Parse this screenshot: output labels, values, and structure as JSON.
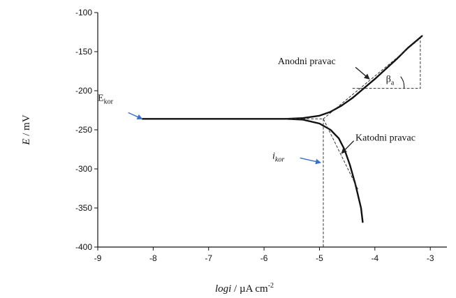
{
  "chart_data": {
    "type": "line",
    "title": "",
    "xlabel": {
      "main": "logi",
      "unit": " / µA cm",
      "sup": "-2"
    },
    "ylabel": {
      "main": "E",
      "unit": " / mV"
    },
    "xlim": [
      -9,
      -2.7
    ],
    "ylim": [
      -400,
      -100
    ],
    "xticks": [
      -9,
      -8,
      -7,
      -6,
      -5,
      -4,
      -3
    ],
    "yticks": [
      -100,
      -150,
      -200,
      -250,
      -300,
      -350,
      -400
    ],
    "grid": false,
    "series": [
      {
        "role": "measured-curve",
        "points": [
          [
            -8.2,
            -236
          ],
          [
            -7.5,
            -236
          ],
          [
            -7.0,
            -236
          ],
          [
            -6.5,
            -236
          ],
          [
            -6.0,
            -236
          ],
          [
            -5.6,
            -236
          ],
          [
            -5.3,
            -235
          ],
          [
            -5.0,
            -232
          ],
          [
            -4.8,
            -227
          ],
          [
            -4.6,
            -219
          ],
          [
            -4.4,
            -209
          ],
          [
            -4.2,
            -197
          ],
          [
            -4.0,
            -185
          ],
          [
            -3.8,
            -172
          ],
          [
            -3.6,
            -159
          ],
          [
            -3.4,
            -145
          ],
          [
            -3.2,
            -133
          ],
          [
            -3.15,
            -130
          ]
        ]
      },
      {
        "role": "measured-curve",
        "points": [
          [
            -5.6,
            -236
          ],
          [
            -5.3,
            -237
          ],
          [
            -5.0,
            -242
          ],
          [
            -4.8,
            -250
          ],
          [
            -4.65,
            -261
          ],
          [
            -4.55,
            -275
          ],
          [
            -4.45,
            -295
          ],
          [
            -4.35,
            -320
          ],
          [
            -4.25,
            -350
          ],
          [
            -4.22,
            -368
          ]
        ]
      },
      {
        "role": "anodic-tafel-line",
        "dashed": true,
        "points": [
          [
            -4.93,
            -236
          ],
          [
            -3.18,
            -133
          ]
        ]
      },
      {
        "role": "cathodic-tafel-line",
        "dashed": true,
        "points": [
          [
            -5.6,
            -236
          ],
          [
            -4.93,
            -236
          ],
          [
            -4.3,
            -327
          ]
        ]
      },
      {
        "role": "icor-drop-line",
        "dashed": true,
        "points": [
          [
            -4.93,
            -236
          ],
          [
            -4.93,
            -400
          ]
        ]
      },
      {
        "role": "beta-triangle",
        "dashed": true,
        "points": [
          [
            -4.4,
            -197
          ],
          [
            -3.18,
            -197
          ],
          [
            -3.18,
            -133
          ]
        ]
      }
    ],
    "annotations": {
      "ekor": {
        "main": "E",
        "sub": "kor",
        "at": [
          -9.0,
          -213
        ]
      },
      "icor": {
        "main": "i",
        "sub": "kor",
        "at": [
          -5.85,
          -287
        ]
      },
      "anodni": {
        "text": "Anodni pravac",
        "at": [
          -5.75,
          -166
        ]
      },
      "katodni": {
        "text": "Katodni pravac",
        "at": [
          -4.35,
          -264
        ]
      },
      "beta": {
        "main": "β",
        "sub": "a",
        "at": [
          -3.8,
          -189
        ]
      }
    },
    "arrows": {
      "ekor": {
        "from": [
          -8.45,
          -228
        ],
        "to": [
          -8.2,
          -236
        ],
        "color": "#3b6fc8"
      },
      "icor": {
        "from": [
          -5.35,
          -286
        ],
        "to": [
          -4.98,
          -292
        ],
        "color": "#3b6fc8"
      },
      "katodni": {
        "from": [
          -4.38,
          -264
        ],
        "to": [
          -4.6,
          -280
        ],
        "color": "#222222"
      },
      "anodni": {
        "from": [
          -4.35,
          -170
        ],
        "to": [
          -4.1,
          -185
        ],
        "color": "#222222"
      }
    }
  }
}
